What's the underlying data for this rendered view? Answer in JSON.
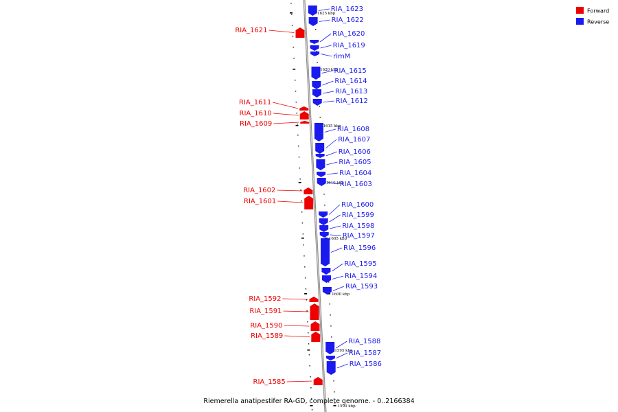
{
  "title": "Riemerella anatipestifer RA-GD, complete genome. - 0..2166384",
  "colors": {
    "forward": "#ee0000",
    "reverse": "#1a1aee",
    "backbone": "#8a8a8a"
  },
  "legend": [
    {
      "label": "Forward",
      "strand": "forward"
    },
    {
      "label": "Reverse",
      "strand": "reverse"
    }
  ],
  "tick_labels": [
    "1625 kbp",
    "1620 kbp",
    "1615 kbp",
    "1610 kbp",
    "1605 kbp",
    "1600 kbp",
    "1595 kbp",
    "1590 kbp"
  ],
  "genes": [
    {
      "id": "RIA_1623",
      "strand": "reverse"
    },
    {
      "id": "RIA_1622",
      "strand": "reverse"
    },
    {
      "id": "RIA_1621",
      "strand": "forward"
    },
    {
      "id": "RIA_1620",
      "strand": "reverse"
    },
    {
      "id": "RIA_1619",
      "strand": "reverse"
    },
    {
      "id": "rimM",
      "strand": "reverse"
    },
    {
      "id": "RIA_1615",
      "strand": "reverse"
    },
    {
      "id": "RIA_1614",
      "strand": "reverse"
    },
    {
      "id": "RIA_1613",
      "strand": "reverse"
    },
    {
      "id": "RIA_1612",
      "strand": "reverse"
    },
    {
      "id": "RIA_1611",
      "strand": "forward"
    },
    {
      "id": "RIA_1610",
      "strand": "forward"
    },
    {
      "id": "RIA_1609",
      "strand": "forward"
    },
    {
      "id": "RIA_1608",
      "strand": "reverse"
    },
    {
      "id": "RIA_1607",
      "strand": "reverse"
    },
    {
      "id": "RIA_1606",
      "strand": "reverse"
    },
    {
      "id": "RIA_1605",
      "strand": "reverse"
    },
    {
      "id": "RIA_1604",
      "strand": "reverse"
    },
    {
      "id": "RIA_1603",
      "strand": "reverse"
    },
    {
      "id": "RIA_1602",
      "strand": "forward"
    },
    {
      "id": "RIA_1601",
      "strand": "forward"
    },
    {
      "id": "RIA_1600",
      "strand": "reverse"
    },
    {
      "id": "RIA_1599",
      "strand": "reverse"
    },
    {
      "id": "RIA_1598",
      "strand": "reverse"
    },
    {
      "id": "RIA_1597",
      "strand": "reverse"
    },
    {
      "id": "RIA_1596",
      "strand": "reverse"
    },
    {
      "id": "RIA_1595",
      "strand": "reverse"
    },
    {
      "id": "RIA_1594",
      "strand": "reverse"
    },
    {
      "id": "RIA_1593",
      "strand": "reverse"
    },
    {
      "id": "RIA_1592",
      "strand": "forward"
    },
    {
      "id": "RIA_1591",
      "strand": "forward"
    },
    {
      "id": "RIA_1590",
      "strand": "forward"
    },
    {
      "id": "RIA_1589",
      "strand": "forward"
    },
    {
      "id": "RIA_1588",
      "strand": "reverse"
    },
    {
      "id": "RIA_1587",
      "strand": "reverse"
    },
    {
      "id": "RIA_1586",
      "strand": "reverse"
    },
    {
      "id": "RIA_1585",
      "strand": "forward"
    }
  ]
}
